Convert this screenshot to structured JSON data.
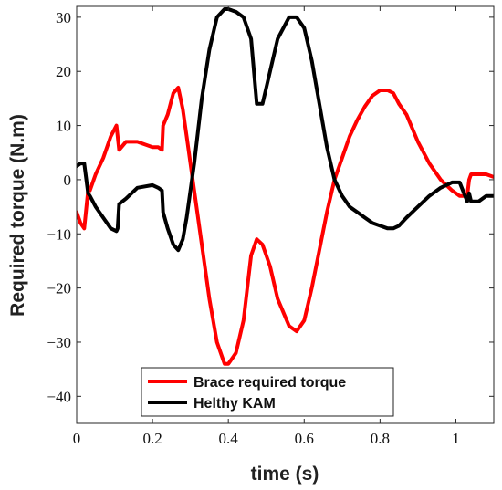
{
  "chart_data": {
    "type": "line",
    "xlabel": "time (s)",
    "ylabel": "Required  torque (N.m)",
    "xlim": [
      0,
      1.1
    ],
    "ylim": [
      -45,
      32
    ],
    "xticks": [
      0,
      0.2,
      0.4,
      0.6,
      0.8,
      1
    ],
    "xtick_labels": [
      "0",
      "0.2",
      "0.4",
      "0.6",
      "0.8",
      "1"
    ],
    "yticks": [
      -40,
      -30,
      -20,
      -10,
      0,
      10,
      20,
      30
    ],
    "ytick_labels": [
      "−40",
      "−30",
      "−20",
      "−10",
      "0",
      "10",
      "20",
      "30"
    ],
    "grid": false,
    "legend_position": "bottom-center",
    "series": [
      {
        "name": "Brace required torque",
        "color": "#ff0000",
        "x": [
          0,
          0.01,
          0.02,
          0.03,
          0.035,
          0.05,
          0.07,
          0.09,
          0.105,
          0.108,
          0.112,
          0.13,
          0.16,
          0.2,
          0.215,
          0.225,
          0.228,
          0.24,
          0.255,
          0.268,
          0.28,
          0.29,
          0.31,
          0.33,
          0.35,
          0.37,
          0.39,
          0.4,
          0.42,
          0.44,
          0.46,
          0.475,
          0.49,
          0.51,
          0.53,
          0.56,
          0.58,
          0.6,
          0.62,
          0.64,
          0.66,
          0.68,
          0.7,
          0.72,
          0.74,
          0.76,
          0.78,
          0.8,
          0.82,
          0.835,
          0.85,
          0.87,
          0.9,
          0.93,
          0.96,
          0.99,
          1.01,
          1.03,
          1.035,
          1.04,
          1.06,
          1.08,
          1.1
        ],
        "y": [
          -6,
          -8,
          -9,
          -2,
          -2,
          1,
          4,
          8,
          10,
          8,
          5.5,
          7,
          7,
          6,
          6,
          5.5,
          10,
          12,
          16,
          17,
          13,
          8,
          -2,
          -12,
          -22,
          -30,
          -34,
          -34,
          -32,
          -26,
          -14,
          -11,
          -12,
          -16,
          -22,
          -27,
          -28,
          -26,
          -20,
          -13,
          -6,
          0,
          4,
          8,
          11,
          13.5,
          15.5,
          16.5,
          16.5,
          16,
          14,
          12,
          7,
          3,
          0,
          -2,
          -3,
          -3,
          0,
          1,
          1,
          1,
          0.5
        ]
      },
      {
        "name": "Helthy KAM",
        "color": "#000000",
        "x": [
          0,
          0.01,
          0.02,
          0.03,
          0.035,
          0.05,
          0.07,
          0.09,
          0.105,
          0.108,
          0.112,
          0.13,
          0.16,
          0.2,
          0.215,
          0.225,
          0.228,
          0.24,
          0.255,
          0.268,
          0.28,
          0.29,
          0.31,
          0.33,
          0.35,
          0.37,
          0.39,
          0.4,
          0.42,
          0.44,
          0.46,
          0.475,
          0.49,
          0.51,
          0.53,
          0.56,
          0.58,
          0.6,
          0.62,
          0.64,
          0.66,
          0.68,
          0.7,
          0.72,
          0.74,
          0.76,
          0.78,
          0.8,
          0.82,
          0.835,
          0.85,
          0.87,
          0.9,
          0.93,
          0.96,
          0.99,
          1.01,
          1.03,
          1.035,
          1.04,
          1.06,
          1.08,
          1.1
        ],
        "y": [
          2.5,
          3,
          3,
          -2.5,
          -3,
          -5,
          -7,
          -9,
          -9.5,
          -9,
          -4.5,
          -3.5,
          -1.5,
          -1,
          -1.5,
          -2,
          -6,
          -9,
          -12,
          -13,
          -11,
          -7,
          3,
          15,
          24,
          30,
          31.5,
          31.5,
          31,
          30,
          26,
          14,
          14,
          20,
          26,
          30,
          30,
          28,
          22,
          14,
          6,
          0,
          -3,
          -5,
          -6,
          -7,
          -8,
          -8.5,
          -9,
          -9,
          -8.5,
          -7,
          -5,
          -3,
          -1.5,
          -0.5,
          -0.5,
          -4,
          -2.5,
          -4,
          -4,
          -3,
          -3
        ]
      }
    ]
  }
}
